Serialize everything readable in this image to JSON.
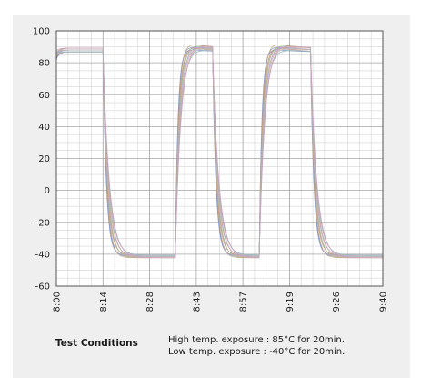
{
  "chart_data": {
    "type": "line",
    "title": "",
    "xlabel": "",
    "ylabel": "",
    "x_ticks": [
      "8:00",
      "8:14",
      "8:28",
      "8:43",
      "8:57",
      "9:19",
      "9:26",
      "9:40"
    ],
    "y_ticks": [
      100,
      80,
      60,
      40,
      20,
      0,
      -20,
      -40,
      -60
    ],
    "ylim": [
      -60,
      100
    ],
    "xlim": [
      0,
      7
    ],
    "grid": true,
    "series_count": 12,
    "series_colors": [
      "#6f8fc9",
      "#8a9ad6",
      "#c9a27a",
      "#b98e6a",
      "#d6b3b3",
      "#9fb58c",
      "#c7c7c7",
      "#a7a7d8",
      "#d9a99a",
      "#8fb0b8",
      "#b8b8b8",
      "#caa0c0"
    ],
    "cycle": {
      "high_value": 88,
      "low_value": -41,
      "segments": [
        {
          "state": "high",
          "start": 0.0,
          "end": 1.0
        },
        {
          "state": "low",
          "start": 1.0,
          "end": 2.55
        },
        {
          "state": "high",
          "start": 2.55,
          "end": 3.35
        },
        {
          "state": "low",
          "start": 3.35,
          "end": 4.35
        },
        {
          "state": "high",
          "start": 4.35,
          "end": 5.45
        },
        {
          "state": "low",
          "start": 5.45,
          "end": 7.0
        }
      ]
    }
  },
  "test_conditions": {
    "title": "Test Conditions",
    "line1": "High temp. exposure : 85°C for 20min.",
    "line2": "Low temp. exposure : -40°C for 20min."
  }
}
